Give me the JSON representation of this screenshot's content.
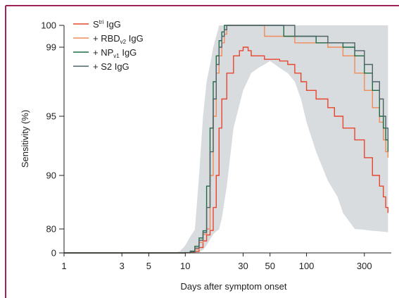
{
  "colors": {
    "frame": "#a0245a",
    "band": "#d9dcde",
    "axis": "#222222"
  },
  "chart_data": {
    "type": "line",
    "xlabel": "Days after symptom onset",
    "ylabel": "Sensitivity (%)",
    "x_scale": "log",
    "xlim": [
      1,
      500
    ],
    "x_ticks": [
      {
        "value": 1,
        "label": "1"
      },
      {
        "value": 3,
        "label": "3"
      },
      {
        "value": 5,
        "label": "5"
      },
      {
        "value": 10,
        "label": "10"
      },
      {
        "value": 30,
        "label": "30"
      },
      {
        "value": 50,
        "label": "50"
      },
      {
        "value": 100,
        "label": "100"
      },
      {
        "value": 300,
        "label": "300"
      }
    ],
    "y_scale": "nonlinear (sensitivity-compressed)",
    "y_ticks": [
      {
        "value": 0,
        "label": "0"
      },
      {
        "value": 80,
        "label": "80"
      },
      {
        "value": 90,
        "label": "90"
      },
      {
        "value": 95,
        "label": "95"
      },
      {
        "value": 99,
        "label": "99"
      },
      {
        "value": 100,
        "label": "100"
      }
    ],
    "legend_placement": "top-left",
    "legend": [
      {
        "base": "S",
        "sup": "tri",
        "sub": "",
        "rest": " IgG",
        "color": "#e8452f"
      },
      {
        "base": "+ RBD",
        "sup": "",
        "sub": "v2",
        "rest": " IgG",
        "color": "#f08a5a"
      },
      {
        "base": "+ NP",
        "sup": "",
        "sub": "v1",
        "rest": " IgG",
        "color": "#1f6b45"
      },
      {
        "base": "+ S2 IgG",
        "sup": "",
        "sub": "",
        "rest": "",
        "color": "#4f6268"
      }
    ],
    "confidence_band": {
      "x": [
        1,
        8,
        9,
        10,
        11,
        12,
        13,
        14,
        15,
        16,
        17,
        18,
        19,
        20,
        22,
        25,
        30,
        35,
        40,
        45,
        50,
        55,
        60,
        70,
        80,
        90,
        100,
        120,
        150,
        180,
        200,
        250,
        300,
        350,
        400,
        450,
        470
      ],
      "upper": [
        0,
        0.5,
        5,
        25,
        55,
        78,
        90,
        95,
        97,
        98,
        99,
        99.5,
        100,
        100,
        100,
        100,
        100,
        100,
        100,
        100,
        100,
        100,
        100,
        100,
        100,
        100,
        100,
        100,
        100,
        100,
        100,
        100,
        100,
        100,
        100,
        100,
        100
      ],
      "lower": [
        0,
        0,
        0,
        0,
        0,
        0.5,
        3,
        10,
        25,
        45,
        62,
        72,
        78,
        82,
        88,
        94,
        96.5,
        97.5,
        97.8,
        98,
        98.2,
        98,
        97.8,
        97.5,
        97,
        96,
        94.5,
        92,
        89,
        86,
        83,
        80,
        77,
        74,
        72,
        70,
        69
      ]
    },
    "series": [
      {
        "name": "Stri IgG",
        "color": "#e8452f",
        "x": [
          1,
          9,
          10,
          11,
          12,
          13,
          14,
          15,
          16,
          17,
          18,
          19,
          20,
          22,
          25,
          28,
          30,
          33,
          35,
          40,
          45,
          50,
          60,
          70,
          80,
          90,
          100,
          120,
          150,
          170,
          200,
          250,
          300,
          350,
          400,
          430,
          450,
          470
        ],
        "y": [
          0,
          0,
          0.3,
          1.5,
          5,
          18,
          40,
          60,
          75,
          84,
          90,
          94,
          96,
          97.5,
          98.5,
          98.8,
          99,
          98.8,
          98.5,
          98.5,
          98.3,
          98.3,
          98.2,
          98,
          97.5,
          97,
          96.5,
          96,
          95.5,
          95,
          94,
          93,
          91.5,
          90,
          88,
          86,
          84,
          83
        ]
      },
      {
        "name": "+ RBDv2 IgG",
        "color": "#f08a5a",
        "x": [
          1,
          9,
          10,
          11,
          12,
          13,
          14,
          15,
          16,
          17,
          18,
          19,
          20,
          21,
          22,
          25,
          30,
          40,
          45,
          50,
          60,
          70,
          80,
          100,
          120,
          150,
          200,
          250,
          300,
          350,
          400,
          430,
          450,
          470
        ],
        "y": [
          0,
          0,
          0.5,
          3,
          12,
          35,
          62,
          80,
          90,
          95,
          97.5,
          98.5,
          99.2,
          99.6,
          100,
          100,
          100,
          100,
          99.5,
          99.5,
          99.5,
          99.5,
          99.2,
          99.2,
          99.2,
          99,
          98.5,
          97.5,
          96.5,
          95.5,
          94.5,
          93,
          92,
          91.5
        ]
      },
      {
        "name": "+ NPv1 IgG",
        "color": "#1f6b45",
        "x": [
          1,
          9,
          10,
          11,
          12,
          13,
          14,
          15,
          16,
          17,
          18,
          19,
          20,
          21,
          22,
          25,
          30,
          40,
          50,
          60,
          65,
          70,
          80,
          100,
          120,
          150,
          200,
          250,
          300,
          350,
          400,
          430,
          450,
          470
        ],
        "y": [
          0,
          0,
          1,
          6,
          22,
          50,
          74,
          88,
          94,
          97,
          98.5,
          99.3,
          99.7,
          100,
          100,
          100,
          100,
          100,
          100,
          100,
          99.5,
          99.5,
          99.5,
          99.5,
          99.2,
          99.2,
          99,
          98.5,
          97.5,
          96.5,
          95,
          94,
          93,
          92
        ]
      },
      {
        "name": "+ S2 IgG",
        "color": "#4f6268",
        "x": [
          1,
          9,
          10,
          11,
          12,
          13,
          14,
          15,
          16,
          17,
          18,
          19,
          20,
          21,
          22,
          25,
          30,
          40,
          50,
          60,
          70,
          80,
          100,
          120,
          150,
          200,
          250,
          300,
          350,
          400,
          430,
          450,
          470
        ],
        "y": [
          0,
          0,
          0.7,
          4,
          16,
          42,
          68,
          84,
          92,
          96,
          98,
          99,
          99.5,
          99.8,
          100,
          100,
          100,
          100,
          100,
          100,
          100,
          99.5,
          99.5,
          99.5,
          99.2,
          99.2,
          98.8,
          98,
          97,
          96,
          95,
          94,
          93
        ]
      }
    ]
  }
}
